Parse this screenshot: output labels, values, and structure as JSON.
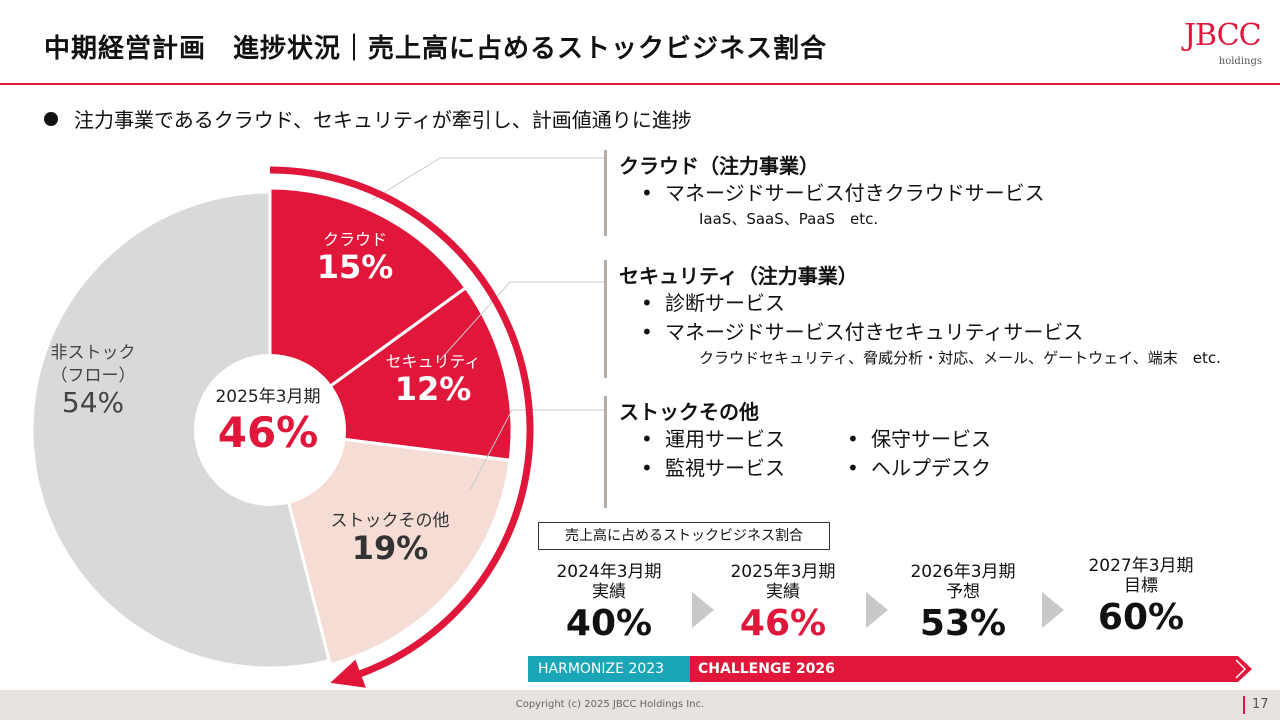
{
  "header": {
    "title": "中期経営計画　進捗状況｜売上高に占めるストックビジネス割合",
    "logo_text": "JBCC",
    "logo_sub": "holdings"
  },
  "lead": "注力事業であるクラウド、セキュリティが牽引し、計画値通りに進捗",
  "chart_data": {
    "type": "pie",
    "title": "",
    "center": {
      "label": "2025年3月期",
      "value": "46%"
    },
    "slices": [
      {
        "name": "クラウド",
        "value": 15,
        "label": "15%",
        "color": "#e0173a"
      },
      {
        "name": "セキュリティ",
        "value": 12,
        "label": "12%",
        "color": "#e0173a"
      },
      {
        "name": "ストックその他",
        "value": 19,
        "label": "19%",
        "color": "#f5ddd6"
      },
      {
        "name_lines": [
          "非ストック",
          "（フロー）"
        ],
        "value": 54,
        "label": "54%",
        "color": "#d9d9d9"
      }
    ]
  },
  "sections": [
    {
      "heading": "クラウド（注力事業）",
      "items": [
        "マネージドサービス付きクラウドサービス"
      ],
      "sub": "IaaS、SaaS、PaaS　etc."
    },
    {
      "heading": "セキュリティ（注力事業）",
      "items": [
        "診断サービス",
        "マネージドサービス付きセキュリティサービス"
      ],
      "sub": "クラウドセキュリティ、脅威分析・対応、メール、ゲートウェイ、端末　etc."
    },
    {
      "heading": "ストックその他",
      "items": [
        "運用サービス",
        "保守サービス",
        "監視サービス",
        "ヘルプデスク"
      ]
    }
  ],
  "ratio_label": "売上高に占めるストックビジネス割合",
  "steps": [
    {
      "period": "2024年3月期",
      "note": "実績",
      "value": "40%"
    },
    {
      "period": "2025年3月期",
      "note": "実績",
      "value": "46%"
    },
    {
      "period": "2026年3月期",
      "note": "予想",
      "value": "53%"
    },
    {
      "period": "2027年3月期",
      "note": "目標",
      "value": "60%"
    }
  ],
  "phases": {
    "first": "HARMONIZE 2023",
    "second": "CHALLENGE 2026"
  },
  "colors": {
    "accent": "#e0173a",
    "teal": "#1aa6b7",
    "gray": "#d9d9d9",
    "pink": "#f5ddd6"
  },
  "footer": {
    "copyright": "Copyright (c) 2025 JBCC Holdings Inc.",
    "page": "17"
  }
}
